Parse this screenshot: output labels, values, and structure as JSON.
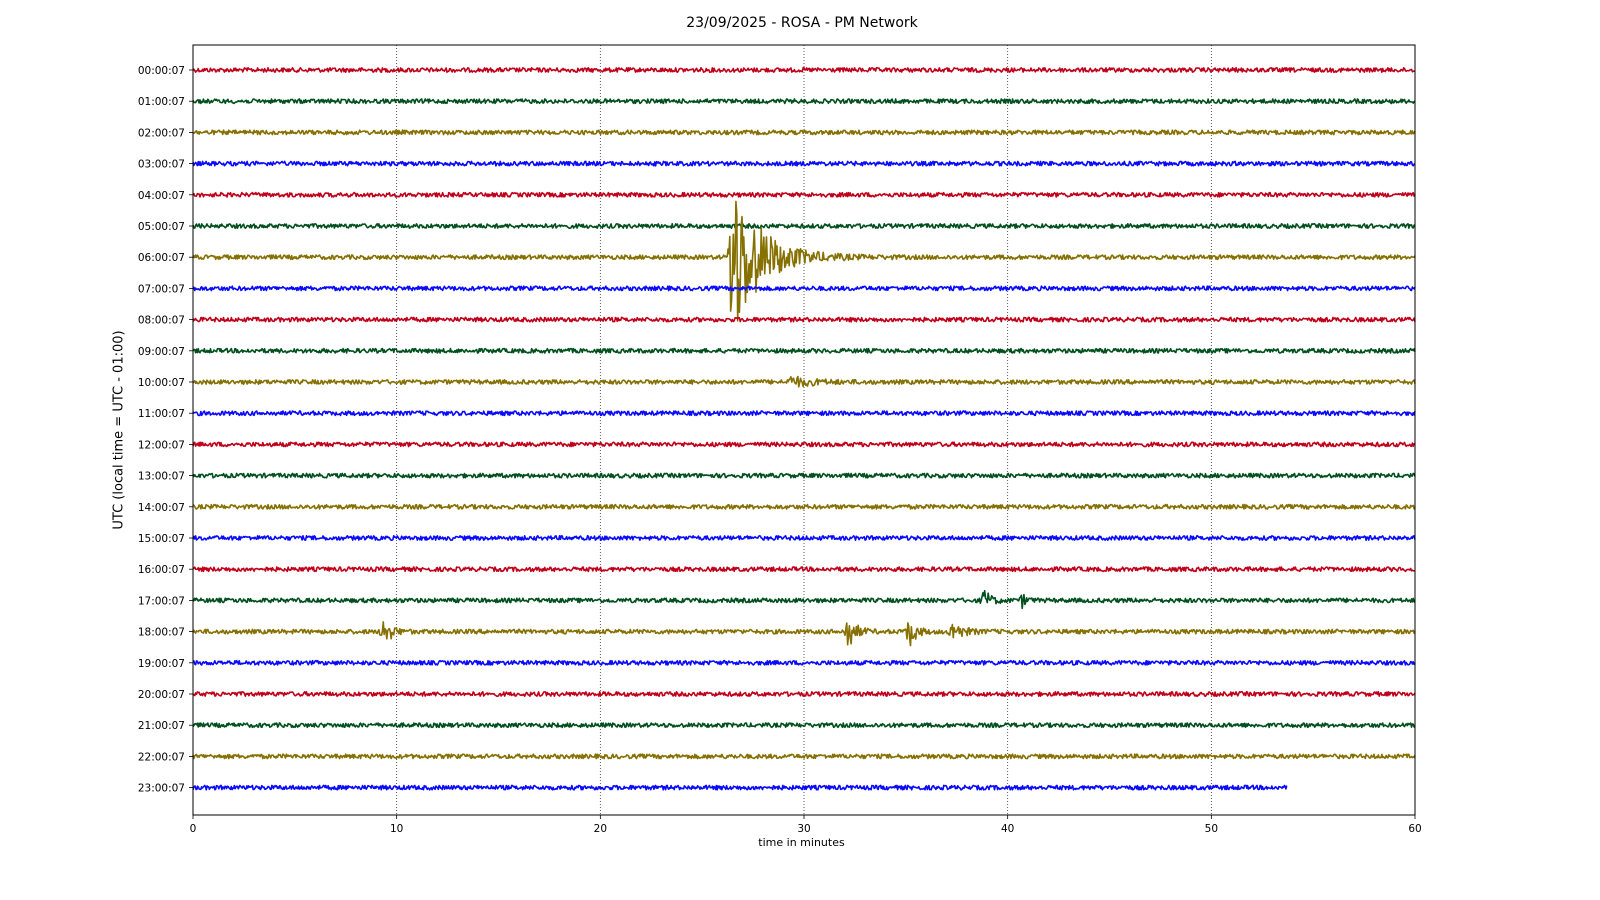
{
  "chart_data": {
    "type": "line",
    "title": "23/09/2025 - ROSA - PM Network",
    "xlabel": "time in minutes",
    "ylabel": "UTC (local time = UTC - 01:00)",
    "xlim": [
      0,
      60
    ],
    "x_ticks": [
      "0",
      "10",
      "20",
      "30",
      "40",
      "50",
      "60"
    ],
    "grid": "vertical dotted",
    "rows": [
      {
        "label": "00:00:07",
        "color": "#c0001a",
        "end": 60
      },
      {
        "label": "01:00:07",
        "color": "#00501e",
        "end": 60
      },
      {
        "label": "02:00:07",
        "color": "#857000",
        "end": 60
      },
      {
        "label": "03:00:07",
        "color": "#0a0aff",
        "end": 60
      },
      {
        "label": "04:00:07",
        "color": "#c0001a",
        "end": 60
      },
      {
        "label": "05:00:07",
        "color": "#00501e",
        "end": 60
      },
      {
        "label": "06:00:07",
        "color": "#857000",
        "end": 60
      },
      {
        "label": "07:00:07",
        "color": "#0a0aff",
        "end": 60
      },
      {
        "label": "08:00:07",
        "color": "#c0001a",
        "end": 60
      },
      {
        "label": "09:00:07",
        "color": "#00501e",
        "end": 60
      },
      {
        "label": "10:00:07",
        "color": "#857000",
        "end": 60
      },
      {
        "label": "11:00:07",
        "color": "#0a0aff",
        "end": 60
      },
      {
        "label": "12:00:07",
        "color": "#c0001a",
        "end": 60
      },
      {
        "label": "13:00:07",
        "color": "#00501e",
        "end": 60
      },
      {
        "label": "14:00:07",
        "color": "#857000",
        "end": 60
      },
      {
        "label": "15:00:07",
        "color": "#0a0aff",
        "end": 60
      },
      {
        "label": "16:00:07",
        "color": "#c0001a",
        "end": 60
      },
      {
        "label": "17:00:07",
        "color": "#00501e",
        "end": 60
      },
      {
        "label": "18:00:07",
        "color": "#857000",
        "end": 60
      },
      {
        "label": "19:00:07",
        "color": "#0a0aff",
        "end": 60
      },
      {
        "label": "20:00:07",
        "color": "#c0001a",
        "end": 60
      },
      {
        "label": "21:00:07",
        "color": "#00501e",
        "end": 60
      },
      {
        "label": "22:00:07",
        "color": "#857000",
        "end": 60
      },
      {
        "label": "23:00:07",
        "color": "#0a0aff",
        "end": 53.7
      }
    ],
    "events": [
      {
        "row": 6,
        "t": 26.4,
        "amp": 2.6,
        "decay": 1.3
      },
      {
        "row": 10,
        "t": 29.3,
        "amp": 0.15,
        "decay": 1.0
      },
      {
        "row": 17,
        "t": 38.8,
        "amp": 0.35,
        "decay": 0.3
      },
      {
        "row": 17,
        "t": 40.7,
        "amp": 0.2,
        "decay": 0.2
      },
      {
        "row": 18,
        "t": 9.3,
        "amp": 0.5,
        "decay": 0.35
      },
      {
        "row": 18,
        "t": 32.1,
        "amp": 0.6,
        "decay": 0.35
      },
      {
        "row": 18,
        "t": 35.1,
        "amp": 0.55,
        "decay": 0.3
      },
      {
        "row": 18,
        "t": 37.2,
        "amp": 0.3,
        "decay": 0.5
      }
    ]
  }
}
